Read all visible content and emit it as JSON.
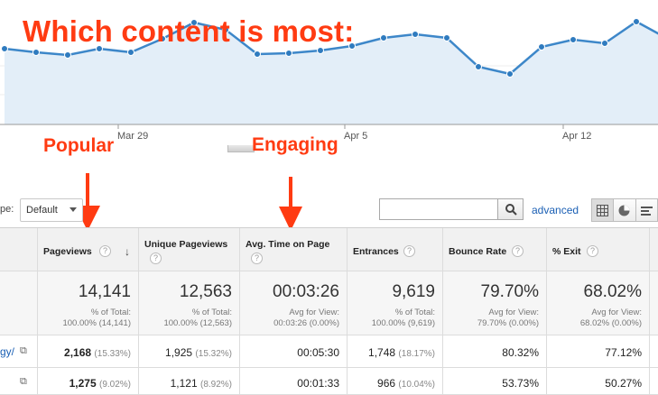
{
  "headline": "Which content is most:",
  "callouts": {
    "popular": "Popular",
    "engaging": "Engaging"
  },
  "chart_data": {
    "type": "area",
    "x_ticks": [
      "Mar 29",
      "Apr 5",
      "Apr 12"
    ],
    "series": [
      {
        "values": [
          84,
          80,
          77,
          84,
          80,
          95,
          113,
          105,
          78,
          79,
          82,
          87,
          96,
          100,
          96,
          64,
          56,
          86,
          94,
          90,
          114,
          95
        ]
      }
    ],
    "colors": {
      "line": "#3d87c9",
      "fill": "#e3eef8",
      "marker": "#2f7bbf"
    }
  },
  "controls": {
    "type_label": "pe:",
    "type_select": "Default",
    "search_placeholder": "",
    "advanced": "advanced",
    "search_icon": "magnifier-icon",
    "view_icons": [
      "grid-icon",
      "pie-icon",
      "bars-icon"
    ]
  },
  "table": {
    "headers": [
      {
        "label": "Pageviews",
        "help": "?"
      },
      {
        "label": "Unique Pageviews",
        "help": "?"
      },
      {
        "label": "Avg. Time on Page",
        "help": "?"
      },
      {
        "label": "Entrances",
        "help": "?"
      },
      {
        "label": "Bounce Rate",
        "help": "?"
      },
      {
        "label": "% Exit",
        "help": "?"
      }
    ],
    "totals": [
      {
        "value": "14,141",
        "sub1": "% of Total:",
        "sub2": "100.00% (14,141)"
      },
      {
        "value": "12,563",
        "sub1": "% of Total:",
        "sub2": "100.00% (12,563)"
      },
      {
        "value": "00:03:26",
        "sub1": "Avg for View:",
        "sub2": "00:03:26 (0.00%)"
      },
      {
        "value": "9,619",
        "sub1": "% of Total:",
        "sub2": "100.00% (9,619)"
      },
      {
        "value": "79.70%",
        "sub1": "Avg for View:",
        "sub2": "79.70% (0.00%)"
      },
      {
        "value": "68.02%",
        "sub1": "Avg for View:",
        "sub2": "68.02% (0.00%)"
      }
    ],
    "rows": [
      {
        "page": "gy/",
        "pageviews": "2,168",
        "pageviews_pct": "(15.33%)",
        "unique": "1,925",
        "unique_pct": "(15.32%)",
        "avg_time": "00:05:30",
        "entrances": "1,748",
        "entrances_pct": "(18.17%)",
        "bounce": "80.32%",
        "exit": "77.12%"
      },
      {
        "page": "",
        "pageviews": "1,275",
        "pageviews_pct": "(9.02%)",
        "unique": "1,121",
        "unique_pct": "(8.92%)",
        "avg_time": "00:01:33",
        "entrances": "966",
        "entrances_pct": "(10.04%)",
        "bounce": "53.73%",
        "exit": "50.27%"
      }
    ]
  }
}
